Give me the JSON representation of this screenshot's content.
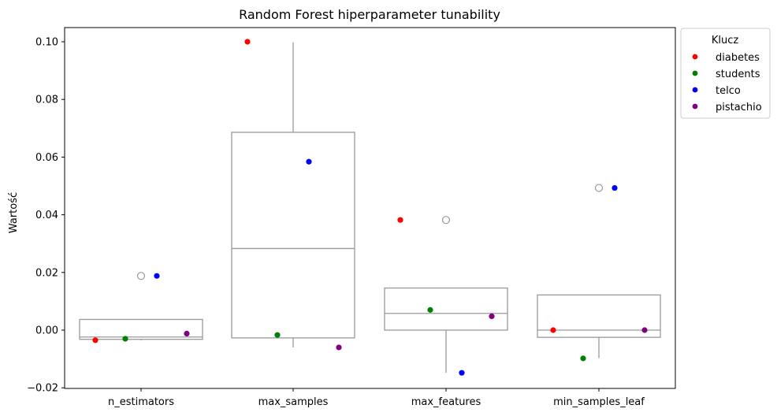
{
  "chart_data": {
    "type": "box+strip",
    "title": "Random Forest hiperparameter tunability",
    "xlabel": "",
    "ylabel": "Wartość",
    "ylim": [
      -0.02,
      0.105
    ],
    "yticks": [
      -0.02,
      0.0,
      0.02,
      0.04,
      0.06,
      0.08,
      0.1
    ],
    "ytick_labels": [
      "−0.02",
      "0.00",
      "0.02",
      "0.04",
      "0.06",
      "0.08",
      "0.10"
    ],
    "categories": [
      "n_estimators",
      "max_samples",
      "max_features",
      "min_samples_leaf"
    ],
    "boxes": [
      {
        "category": "n_estimators",
        "q1": -0.0032,
        "median": -0.0024,
        "q3": 0.0037,
        "whisker_low": -0.0036,
        "whisker_high": 0.0037,
        "outliers": [
          0.0188
        ]
      },
      {
        "category": "max_samples",
        "q1": -0.0027,
        "median": 0.0283,
        "q3": 0.0686,
        "whisker_low": -0.006,
        "whisker_high": 0.0998,
        "outliers": []
      },
      {
        "category": "max_features",
        "q1": 0.0,
        "median": 0.0058,
        "q3": 0.0146,
        "whisker_low": -0.0148,
        "whisker_high": 0.0146,
        "outliers": [
          0.0382
        ]
      },
      {
        "category": "min_samples_leaf",
        "q1": -0.0025,
        "median": 0.0,
        "q3": 0.0122,
        "whisker_low": -0.0097,
        "whisker_high": 0.0122,
        "outliers": [
          0.0493
        ]
      }
    ],
    "series": [
      {
        "name": "diabetes",
        "color": "#ff0000",
        "values": [
          -0.0035,
          0.1,
          0.0382,
          0.0
        ]
      },
      {
        "name": "students",
        "color": "#008000",
        "values": [
          -0.003,
          -0.0017,
          0.007,
          -0.0098
        ]
      },
      {
        "name": "telco",
        "color": "#0000ff",
        "values": [
          0.0188,
          0.0584,
          -0.0148,
          0.0493
        ]
      },
      {
        "name": "pistachio",
        "color": "#800080",
        "values": [
          -0.0012,
          -0.006,
          0.0048,
          0.0
        ]
      }
    ],
    "legend": {
      "title": "Klucz",
      "placement": "top-right outside"
    },
    "grid": false,
    "box_color": "#999999"
  }
}
